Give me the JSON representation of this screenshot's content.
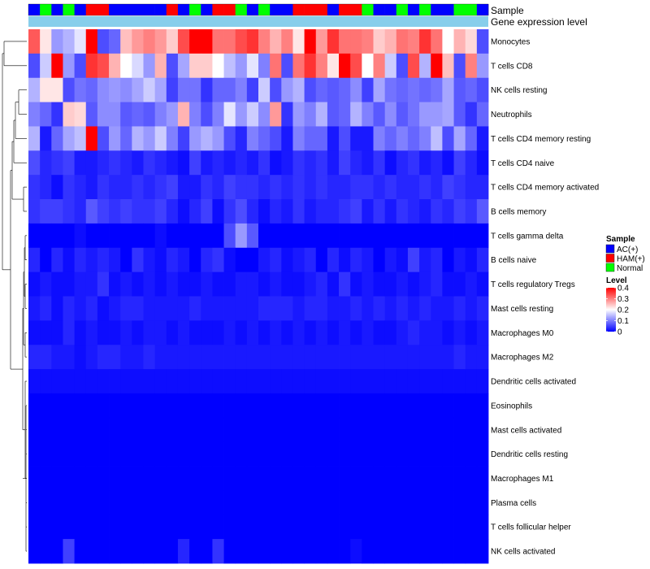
{
  "chart_data": {
    "type": "heatmap",
    "annotation_rows": {
      "sample_label": "Sample",
      "expression_label": "Gene expression level"
    },
    "rows": [
      "Monocytes",
      "T cells CD8",
      "NK cells resting",
      "Neutrophils",
      "T cells CD4 memory resting",
      "T cells CD4 naive",
      "T cells CD4 memory activated",
      "B cells memory",
      "T cells gamma delta",
      "B cells naive",
      "T cells regulatory  Tregs",
      "Mast cells resting",
      "Macrophages M0",
      "Macrophages M2",
      "Dendritic cells activated",
      "Eosinophils",
      "Mast cells activated",
      "Dendritic cells resting",
      "Macrophages M1",
      "Plasma cells",
      "T cells follicular helper",
      "NK cells activated"
    ],
    "sample_groups": [
      "AC(+)",
      "Normal",
      "AC(+)",
      "Normal",
      "AC(+)",
      "HAM(+)",
      "HAM(+)",
      "AC(+)",
      "AC(+)",
      "AC(+)",
      "AC(+)",
      "AC(+)",
      "HAM(+)",
      "AC(+)",
      "Normal",
      "AC(+)",
      "HAM(+)",
      "HAM(+)",
      "Normal",
      "AC(+)",
      "Normal",
      "AC(+)",
      "AC(+)",
      "HAM(+)",
      "HAM(+)",
      "HAM(+)",
      "AC(+)",
      "HAM(+)",
      "HAM(+)",
      "Normal",
      "AC(+)",
      "AC(+)",
      "Normal",
      "AC(+)",
      "Normal",
      "AC(+)",
      "AC(+)",
      "Normal",
      "Normal",
      "AC(+)"
    ],
    "values": [
      [
        0.33,
        0.22,
        0.12,
        0.14,
        0.18,
        0.4,
        0.06,
        0.08,
        0.25,
        0.28,
        0.3,
        0.28,
        0.24,
        0.34,
        0.4,
        0.4,
        0.31,
        0.31,
        0.34,
        0.36,
        0.3,
        0.26,
        0.3,
        0.22,
        0.4,
        0.28,
        0.36,
        0.31,
        0.31,
        0.3,
        0.24,
        0.26,
        0.31,
        0.3,
        0.36,
        0.31,
        0.2,
        0.26,
        0.23,
        0.06
      ],
      [
        0.06,
        0.16,
        0.4,
        0.12,
        0.06,
        0.36,
        0.34,
        0.26,
        0.2,
        0.17,
        0.12,
        0.26,
        0.06,
        0.13,
        0.24,
        0.24,
        0.2,
        0.15,
        0.12,
        0.18,
        0.1,
        0.31,
        0.06,
        0.31,
        0.36,
        0.3,
        0.22,
        0.4,
        0.34,
        0.2,
        0.3,
        0.16,
        0.06,
        0.34,
        0.14,
        0.4,
        0.25,
        0.06,
        0.3,
        0.12
      ],
      [
        0.14,
        0.22,
        0.22,
        0.06,
        0.09,
        0.08,
        0.11,
        0.12,
        0.11,
        0.13,
        0.16,
        0.13,
        0.05,
        0.09,
        0.09,
        0.04,
        0.08,
        0.08,
        0.1,
        0.05,
        0.16,
        0.06,
        0.12,
        0.14,
        0.06,
        0.08,
        0.07,
        0.08,
        0.11,
        0.05,
        0.13,
        0.09,
        0.08,
        0.09,
        0.08,
        0.09,
        0.13,
        0.07,
        0.08,
        0.06
      ],
      [
        0.1,
        0.08,
        0.04,
        0.24,
        0.23,
        0.07,
        0.11,
        0.11,
        0.07,
        0.08,
        0.07,
        0.1,
        0.12,
        0.26,
        0.1,
        0.06,
        0.1,
        0.18,
        0.12,
        0.16,
        0.11,
        0.28,
        0.04,
        0.12,
        0.1,
        0.14,
        0.07,
        0.08,
        0.14,
        0.1,
        0.07,
        0.11,
        0.07,
        0.09,
        0.12,
        0.12,
        0.13,
        0.07,
        0.04,
        0.08
      ],
      [
        0.14,
        0.02,
        0.08,
        0.13,
        0.15,
        0.4,
        0.06,
        0.12,
        0.08,
        0.14,
        0.12,
        0.16,
        0.1,
        0.05,
        0.12,
        0.14,
        0.12,
        0.06,
        0.03,
        0.1,
        0.08,
        0.06,
        0.02,
        0.1,
        0.08,
        0.08,
        0.02,
        0.06,
        0.02,
        0.02,
        0.1,
        0.08,
        0.1,
        0.08,
        0.1,
        0.15,
        0.06,
        0.13,
        0.08,
        0.02
      ],
      [
        0.06,
        0.03,
        0.04,
        0.05,
        0.02,
        0.02,
        0.03,
        0.04,
        0.03,
        0.02,
        0.04,
        0.03,
        0.02,
        0.01,
        0.05,
        0.02,
        0.03,
        0.02,
        0.03,
        0.02,
        0.04,
        0.01,
        0.02,
        0.04,
        0.03,
        0.04,
        0.02,
        0.05,
        0.03,
        0.02,
        0.04,
        0.01,
        0.03,
        0.04,
        0.02,
        0.03,
        0.01,
        0.05,
        0.03,
        0.01
      ],
      [
        0.04,
        0.03,
        0.01,
        0.04,
        0.03,
        0.02,
        0.04,
        0.03,
        0.03,
        0.04,
        0.03,
        0.04,
        0.05,
        0.02,
        0.02,
        0.04,
        0.03,
        0.05,
        0.04,
        0.04,
        0.03,
        0.04,
        0.03,
        0.04,
        0.03,
        0.04,
        0.03,
        0.03,
        0.04,
        0.04,
        0.03,
        0.04,
        0.03,
        0.03,
        0.04,
        0.03,
        0.05,
        0.04,
        0.03,
        0.03
      ],
      [
        0.04,
        0.05,
        0.05,
        0.04,
        0.03,
        0.07,
        0.05,
        0.04,
        0.05,
        0.04,
        0.04,
        0.05,
        0.03,
        0.01,
        0.03,
        0.05,
        0.01,
        0.04,
        0.06,
        0.03,
        0.01,
        0.03,
        0.02,
        0.04,
        0.02,
        0.03,
        0.03,
        0.04,
        0.05,
        0.02,
        0.04,
        0.02,
        0.04,
        0.03,
        0.02,
        0.04,
        0.03,
        0.05,
        0.04,
        0.07
      ],
      [
        0.0,
        0.0,
        0.0,
        0.0,
        0.01,
        0.0,
        0.0,
        0.0,
        0.0,
        0.0,
        0.0,
        0.01,
        0.0,
        0.0,
        0.0,
        0.0,
        0.0,
        0.06,
        0.12,
        0.07,
        0.0,
        0.0,
        0.0,
        0.0,
        0.0,
        0.0,
        0.0,
        0.0,
        0.0,
        0.0,
        0.0,
        0.0,
        0.0,
        0.0,
        0.0,
        0.0,
        0.0,
        0.0,
        0.0,
        0.0
      ],
      [
        0.03,
        0.0,
        0.03,
        0.01,
        0.03,
        0.02,
        0.03,
        0.02,
        0.0,
        0.04,
        0.02,
        0.01,
        0.03,
        0.02,
        0.0,
        0.03,
        0.04,
        0.01,
        0.0,
        0.0,
        0.02,
        0.03,
        0.01,
        0.02,
        0.03,
        0.0,
        0.03,
        0.01,
        0.03,
        0.02,
        0.0,
        0.02,
        0.01,
        0.05,
        0.02,
        0.03,
        0.0,
        0.02,
        0.01,
        0.03
      ],
      [
        0.01,
        0.02,
        0.01,
        0.01,
        0.02,
        0.02,
        0.04,
        0.01,
        0.02,
        0.01,
        0.02,
        0.01,
        0.02,
        0.01,
        0.01,
        0.02,
        0.01,
        0.01,
        0.02,
        0.02,
        0.01,
        0.02,
        0.01,
        0.01,
        0.02,
        0.03,
        0.01,
        0.04,
        0.01,
        0.02,
        0.01,
        0.01,
        0.02,
        0.01,
        0.02,
        0.03,
        0.01,
        0.01,
        0.02,
        0.01
      ],
      [
        0.02,
        0.03,
        0.01,
        0.03,
        0.02,
        0.03,
        0.01,
        0.02,
        0.03,
        0.03,
        0.02,
        0.02,
        0.02,
        0.02,
        0.03,
        0.02,
        0.02,
        0.02,
        0.02,
        0.02,
        0.03,
        0.03,
        0.03,
        0.02,
        0.03,
        0.03,
        0.02,
        0.02,
        0.03,
        0.02,
        0.03,
        0.02,
        0.03,
        0.02,
        0.03,
        0.02,
        0.02,
        0.03,
        0.02,
        0.03
      ],
      [
        0.01,
        0.01,
        0.01,
        0.03,
        0.01,
        0.02,
        0.01,
        0.01,
        0.02,
        0.01,
        0.02,
        0.02,
        0.01,
        0.02,
        0.01,
        0.01,
        0.01,
        0.02,
        0.01,
        0.02,
        0.01,
        0.02,
        0.01,
        0.02,
        0.01,
        0.02,
        0.01,
        0.02,
        0.01,
        0.02,
        0.01,
        0.01,
        0.02,
        0.03,
        0.02,
        0.02,
        0.01,
        0.02,
        0.01,
        0.02
      ],
      [
        0.03,
        0.03,
        0.02,
        0.02,
        0.01,
        0.02,
        0.03,
        0.03,
        0.02,
        0.02,
        0.03,
        0.02,
        0.02,
        0.02,
        0.02,
        0.02,
        0.02,
        0.02,
        0.02,
        0.02,
        0.02,
        0.02,
        0.02,
        0.02,
        0.02,
        0.02,
        0.02,
        0.02,
        0.02,
        0.02,
        0.02,
        0.02,
        0.02,
        0.02,
        0.02,
        0.02,
        0.02,
        0.03,
        0.02,
        0.02
      ],
      [
        0.01,
        0.01,
        0.01,
        0.01,
        0.01,
        0.01,
        0.01,
        0.01,
        0.01,
        0.01,
        0.01,
        0.01,
        0.01,
        0.01,
        0.01,
        0.01,
        0.01,
        0.01,
        0.01,
        0.01,
        0.01,
        0.01,
        0.01,
        0.01,
        0.01,
        0.01,
        0.01,
        0.01,
        0.01,
        0.01,
        0.01,
        0.01,
        0.01,
        0.01,
        0.01,
        0.01,
        0.01,
        0.01,
        0.01,
        0.01
      ],
      [
        0.0,
        0.0,
        0.0,
        0.0,
        0.0,
        0.0,
        0.0,
        0.0,
        0.0,
        0.0,
        0.0,
        0.0,
        0.0,
        0.0,
        0.0,
        0.0,
        0.0,
        0.0,
        0.0,
        0.0,
        0.0,
        0.0,
        0.0,
        0.0,
        0.0,
        0.0,
        0.0,
        0.0,
        0.0,
        0.0,
        0.0,
        0.0,
        0.0,
        0.0,
        0.0,
        0.0,
        0.0,
        0.0,
        0.0,
        0.0
      ],
      [
        0.0,
        0.0,
        0.0,
        0.0,
        0.0,
        0.0,
        0.0,
        0.0,
        0.0,
        0.0,
        0.0,
        0.0,
        0.0,
        0.0,
        0.0,
        0.0,
        0.0,
        0.0,
        0.0,
        0.0,
        0.0,
        0.0,
        0.0,
        0.0,
        0.0,
        0.0,
        0.0,
        0.0,
        0.0,
        0.0,
        0.0,
        0.0,
        0.0,
        0.0,
        0.0,
        0.0,
        0.0,
        0.0,
        0.0,
        0.0
      ],
      [
        0.0,
        0.0,
        0.0,
        0.0,
        0.0,
        0.0,
        0.0,
        0.0,
        0.0,
        0.0,
        0.0,
        0.0,
        0.0,
        0.0,
        0.0,
        0.0,
        0.0,
        0.0,
        0.0,
        0.0,
        0.0,
        0.0,
        0.0,
        0.0,
        0.0,
        0.0,
        0.0,
        0.0,
        0.0,
        0.0,
        0.0,
        0.0,
        0.0,
        0.0,
        0.0,
        0.0,
        0.0,
        0.0,
        0.0,
        0.0
      ],
      [
        0.0,
        0.0,
        0.0,
        0.0,
        0.0,
        0.0,
        0.0,
        0.0,
        0.0,
        0.0,
        0.0,
        0.0,
        0.0,
        0.0,
        0.0,
        0.0,
        0.0,
        0.0,
        0.0,
        0.0,
        0.0,
        0.0,
        0.0,
        0.0,
        0.0,
        0.0,
        0.0,
        0.0,
        0.0,
        0.0,
        0.0,
        0.0,
        0.0,
        0.0,
        0.0,
        0.0,
        0.0,
        0.0,
        0.0,
        0.0
      ],
      [
        0.0,
        0.0,
        0.0,
        0.0,
        0.0,
        0.0,
        0.0,
        0.0,
        0.0,
        0.0,
        0.0,
        0.0,
        0.0,
        0.0,
        0.0,
        0.0,
        0.0,
        0.0,
        0.0,
        0.0,
        0.0,
        0.0,
        0.0,
        0.0,
        0.0,
        0.0,
        0.0,
        0.0,
        0.0,
        0.0,
        0.0,
        0.0,
        0.0,
        0.0,
        0.0,
        0.0,
        0.0,
        0.0,
        0.0,
        0.0
      ],
      [
        0.0,
        0.0,
        0.0,
        0.0,
        0.0,
        0.0,
        0.0,
        0.0,
        0.0,
        0.0,
        0.0,
        0.0,
        0.0,
        0.0,
        0.0,
        0.0,
        0.0,
        0.0,
        0.0,
        0.0,
        0.0,
        0.0,
        0.0,
        0.0,
        0.0,
        0.0,
        0.0,
        0.0,
        0.0,
        0.0,
        0.0,
        0.0,
        0.0,
        0.0,
        0.0,
        0.0,
        0.0,
        0.0,
        0.0,
        0.0
      ],
      [
        0.0,
        0.0,
        0.0,
        0.05,
        0.0,
        0.0,
        0.0,
        0.0,
        0.0,
        0.0,
        0.0,
        0.0,
        0.0,
        0.03,
        0.0,
        0.0,
        0.04,
        0.0,
        0.0,
        0.0,
        0.0,
        0.0,
        0.0,
        0.0,
        0.0,
        0.0,
        0.0,
        0.0,
        0.01,
        0.0,
        0.0,
        0.0,
        0.0,
        0.0,
        0.0,
        0.0,
        0.0,
        0.0,
        0.0,
        0.0
      ]
    ],
    "color_scale": {
      "min": 0,
      "max": 0.4,
      "low_color": "#0000ff",
      "mid_color": "#ffffff",
      "high_color": "#ff0000",
      "mid_value": 0.2
    },
    "legend": {
      "sample_title": "Sample",
      "sample_entries": [
        {
          "label": "AC(+)",
          "color": "#0000ff"
        },
        {
          "label": "HAM(+)",
          "color": "#ff0000"
        },
        {
          "label": "Normal",
          "color": "#00ff00"
        }
      ],
      "level_title": "Level",
      "level_ticks": [
        0.4,
        0.3,
        0.2,
        0.1,
        0
      ],
      "placement": "right"
    },
    "expression_bar_color": "#87ceeb",
    "dendrogram": "left"
  }
}
